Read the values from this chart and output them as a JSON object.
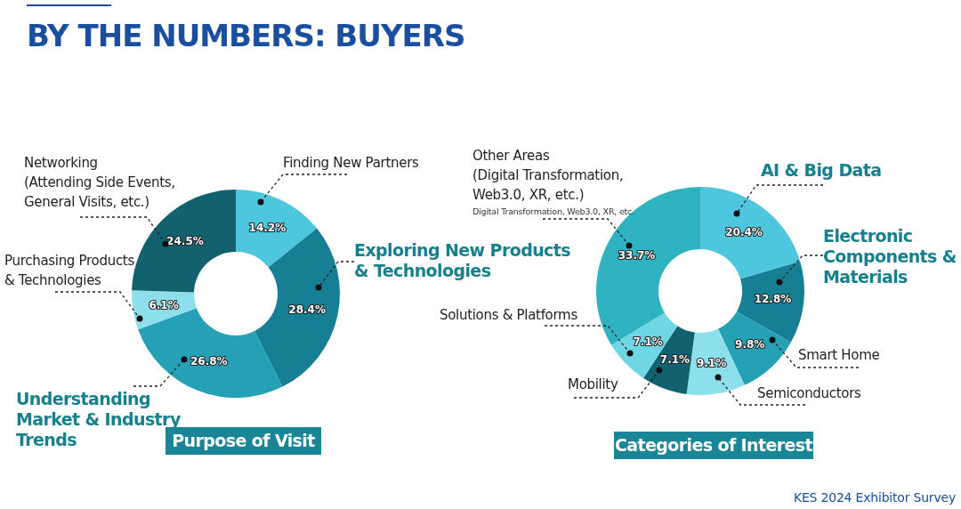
{
  "chart_data": [
    {
      "type": "donut",
      "title": "Purpose of Visit",
      "annotations": [
        "BY THE NUMBERS: BUYERS"
      ],
      "categories": [
        "Finding New Partners",
        "Exploring New Products & Technologies",
        "Understanding Market & Industry Trends",
        "Purchasing Products & Technologies",
        "Networking (Attending Side Events, General Visits, etc.)"
      ],
      "values": [
        14.2,
        28.4,
        26.8,
        6.1,
        24.5
      ],
      "colors": [
        "#4ec6de",
        "#167f93",
        "#25a0b5",
        "#8ddfec",
        "#12616f"
      ],
      "value_labels": [
        "14.2%",
        "28.4%",
        "26.8%",
        "6.1%",
        "24.5%"
      ]
    },
    {
      "type": "donut",
      "title": "Categories of Interest",
      "annotations": [
        "Digital Transformation, Web3.0, XR, etc.",
        "KES 2024 Exhibitor Survey"
      ],
      "categories": [
        "AI & Big Data",
        "Electronic Components & Materials",
        "Smart Home",
        "Semiconductors",
        "Mobility",
        "Solutions & Platforms",
        "Other Areas (Digital Transformation, Web3.0, XR, etc.)"
      ],
      "values": [
        20.4,
        12.8,
        9.8,
        9.1,
        7.1,
        7.1,
        33.7
      ],
      "colors": [
        "#4ec6de",
        "#167f93",
        "#25a0b5",
        "#8ddfec",
        "#12616f",
        "#6fd6e3",
        "#2fb3c0"
      ],
      "value_labels": [
        "20.4%",
        "12.8%",
        "9.8%",
        "9.1%",
        "7.1%",
        "7.1%",
        "33.7%"
      ]
    }
  ]
}
